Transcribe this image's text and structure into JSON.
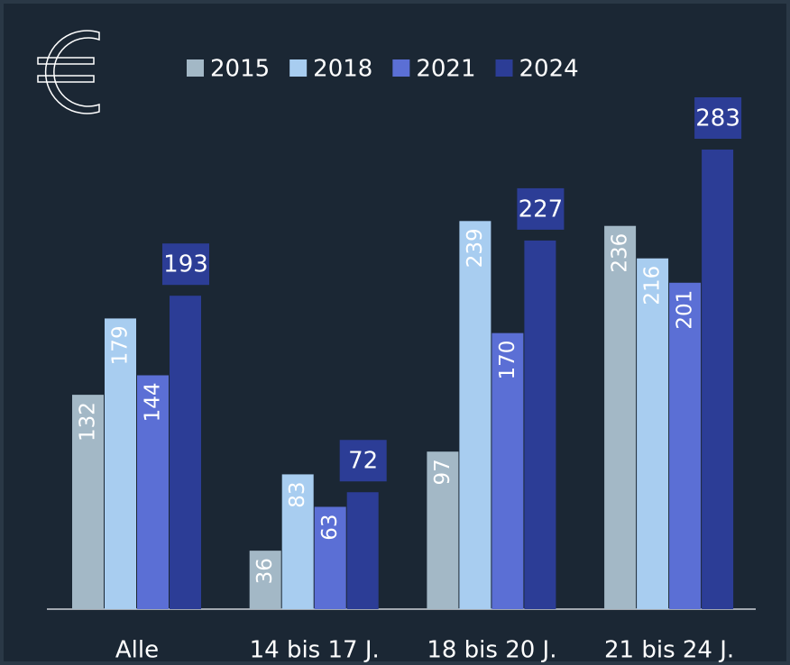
{
  "chart_data": {
    "type": "bar",
    "categories": [
      "Alle",
      "14 bis 17 J.",
      "18 bis 20 J.",
      "21 bis 24 J."
    ],
    "series": [
      {
        "name": "2015",
        "color": "#a3b8c6",
        "values": [
          132,
          36,
          97,
          236
        ]
      },
      {
        "name": "2018",
        "color": "#a8cdf0",
        "values": [
          179,
          83,
          239,
          216
        ]
      },
      {
        "name": "2021",
        "color": "#5b6fd5",
        "values": [
          144,
          63,
          170,
          201
        ]
      },
      {
        "name": "2024",
        "color": "#2c3d96",
        "values": [
          193,
          72,
          227,
          283
        ]
      }
    ]
  }
}
